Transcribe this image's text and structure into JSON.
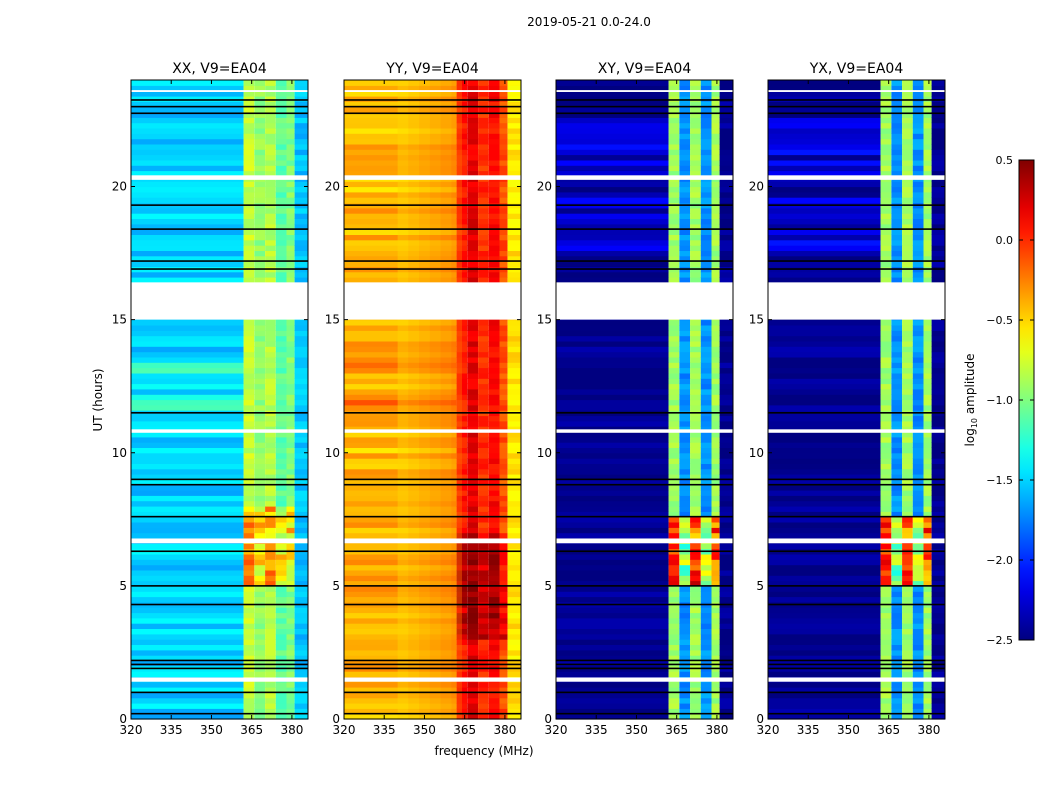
{
  "chart_data": {
    "type": "heatmap",
    "title": "2019-05-21 0.0-24.0",
    "xlabel": "frequency (MHz)",
    "ylabel": "UT (hours)",
    "xlim": [
      320,
      386
    ],
    "ylim": [
      0,
      24
    ],
    "xticks": [
      320,
      335,
      350,
      365,
      380
    ],
    "yticks": [
      0,
      5,
      10,
      15,
      20
    ],
    "colorbar": {
      "label_prefix": "log",
      "label_sub": "10",
      "label_suffix": " amplitude",
      "colormap": "jet",
      "range": [
        -2.5,
        0.5
      ],
      "ticks": [
        0.5,
        0.0,
        -0.5,
        -1.0,
        -1.5,
        -2.0,
        -2.5
      ],
      "tick_labels": [
        "0.5",
        "0.0",
        "−0.5",
        "−1.0",
        "−1.5",
        "−2.0",
        "−2.5"
      ]
    },
    "freq_segments": [
      [
        320,
        362
      ],
      [
        362,
        366
      ],
      [
        366,
        370
      ],
      [
        370,
        374
      ],
      [
        374,
        378
      ],
      [
        378,
        381
      ],
      [
        381,
        386
      ]
    ],
    "flagged_white_hours": [
      [
        15.0,
        16.4
      ],
      [
        20.25,
        20.42
      ],
      [
        10.75,
        10.88
      ],
      [
        6.6,
        6.78
      ],
      [
        1.4,
        1.56
      ],
      [
        23.55,
        23.62
      ]
    ],
    "flagged_black_hours": [
      23.25,
      23.0,
      22.75,
      19.3,
      18.4,
      17.2,
      16.9,
      11.5,
      9.0,
      8.8,
      7.6,
      6.3,
      5.0,
      4.3,
      2.2,
      2.05,
      1.9,
      1.0,
      0.2
    ],
    "panels": [
      {
        "title": "XX, V9=EA04",
        "base": -1.55,
        "base_slope": 0.15,
        "band": [
          -0.95,
          -0.8,
          -0.95,
          -0.85,
          -1.1,
          -1.0,
          -1.55
        ],
        "hot_hours": [
          5,
          8
        ],
        "hot_boost": 0.45,
        "feature_hours": [
          11.5,
          13.2
        ],
        "feature_boost": 0.3
      },
      {
        "title": "YY, V9=EA04",
        "base": -0.5,
        "base_slope": 0.35,
        "band": [
          0.15,
          0.05,
          0.2,
          0.0,
          0.1,
          -0.1,
          -0.55
        ],
        "hot_hours": [
          3,
          7
        ],
        "hot_boost": 0.25,
        "feature_hours": [
          11.0,
          13.2
        ],
        "feature_boost": 0.2
      },
      {
        "title": "XY, V9=EA04",
        "base": -2.45,
        "base_slope": 0.0,
        "band": [
          -2.4,
          -0.9,
          -1.7,
          -0.9,
          -1.7,
          -0.9,
          -2.45
        ],
        "hot_hours": [
          5,
          7.5
        ],
        "hot_boost": 0.8,
        "feature_hours": [
          17.5,
          22.5
        ],
        "feature_boost": 0.35
      },
      {
        "title": "YX, V9=EA04",
        "base": -2.45,
        "base_slope": 0.0,
        "band": [
          -2.4,
          -0.9,
          -1.7,
          -0.9,
          -1.7,
          -0.9,
          -2.45
        ],
        "hot_hours": [
          5,
          7.5
        ],
        "hot_boost": 0.8,
        "feature_hours": [
          17.5,
          22.5
        ],
        "feature_boost": 0.35
      }
    ]
  }
}
